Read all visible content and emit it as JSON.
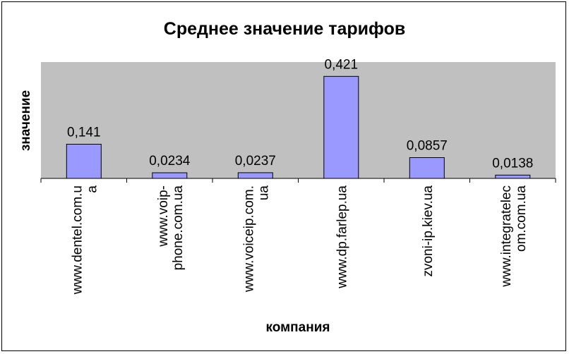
{
  "chart_data": {
    "type": "bar",
    "title": "Среднее значение тарифов",
    "xlabel": "компания",
    "ylabel": "значение",
    "categories": [
      [
        "www.dentel.com.u",
        "a"
      ],
      [
        "www.voip-",
        "phone.com.ua"
      ],
      [
        "www.voiceip.com.",
        "ua"
      ],
      [
        "www.dp.farlep.ua"
      ],
      [
        "zvoni-ip.kiev.ua"
      ],
      [
        "www.integratelec",
        "om.com.ua"
      ]
    ],
    "values": [
      0.141,
      0.0234,
      0.0237,
      0.421,
      0.0857,
      0.0138
    ],
    "data_labels": [
      "0,141",
      "0,0234",
      "0,0237",
      "0,421",
      "0,0857",
      "0,0138"
    ],
    "ylim": [
      0,
      0.48
    ],
    "grid": false,
    "legend": "none",
    "colors": {
      "plot_background": "#c0c0c0",
      "bar_fill": "#9999ff",
      "bar_stroke": "#000000"
    }
  }
}
